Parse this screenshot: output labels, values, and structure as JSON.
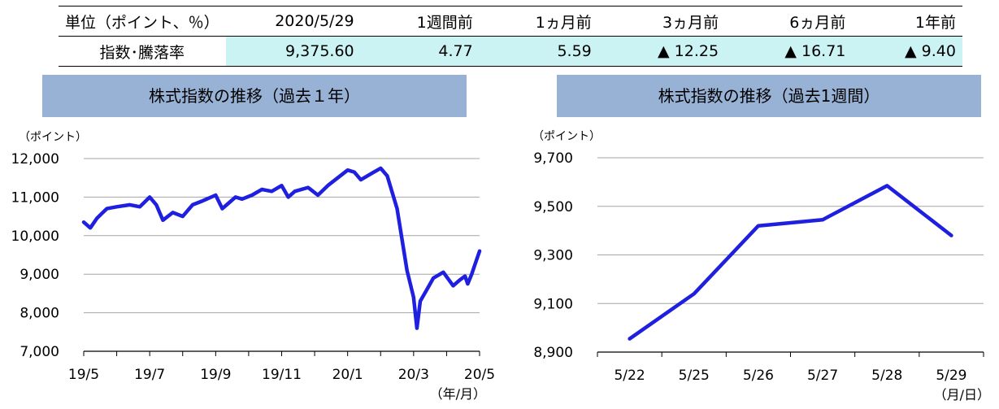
{
  "table": {
    "header": [
      "単位（ポイント、％）",
      "2020/5/29",
      "1週間前",
      "1ヵ月前",
      "3ヵ月前",
      "6ヵ月前",
      "1年前"
    ],
    "row_label": "指数･騰落率",
    "values": [
      "9,375.60",
      "4.77",
      "5.59",
      "▲ 12.25",
      "▲ 16.71",
      "▲ 9.40"
    ]
  },
  "chart_data": [
    {
      "type": "line",
      "title": "株式指数の推移（過去１年）",
      "ylabel": "（ポイント）",
      "xunit": "（年/月）",
      "ylim": [
        7000,
        12000
      ],
      "yticks": [
        "12,000",
        "11,000",
        "10,000",
        "9,000",
        "8,000",
        "7,000"
      ],
      "xticks": [
        "19/5",
        "19/7",
        "19/9",
        "19/11",
        "20/1",
        "20/3",
        "20/5"
      ],
      "color": "#1f1fe0",
      "x": [
        0,
        0.1,
        0.2,
        0.35,
        0.5,
        0.7,
        0.85,
        1.0,
        1.1,
        1.2,
        1.35,
        1.5,
        1.65,
        1.8,
        2.0,
        2.1,
        2.2,
        2.3,
        2.4,
        2.55,
        2.7,
        2.85,
        3.0,
        3.1,
        3.2,
        3.4,
        3.55,
        3.7,
        3.85,
        4.0,
        4.1,
        4.2,
        4.4,
        4.5,
        4.6,
        4.75,
        4.9,
        5.0,
        5.05,
        5.1,
        5.2,
        5.3,
        5.45,
        5.6,
        5.7,
        5.78,
        5.82,
        5.88,
        5.92,
        6.0
      ],
      "y": [
        10350,
        10200,
        10450,
        10700,
        10750,
        10800,
        10750,
        11000,
        10800,
        10400,
        10600,
        10500,
        10800,
        10900,
        11050,
        10700,
        10850,
        11000,
        10950,
        11050,
        11200,
        11150,
        11300,
        11000,
        11150,
        11250,
        11050,
        11300,
        11500,
        11700,
        11650,
        11450,
        11650,
        11750,
        11550,
        10700,
        9100,
        8400,
        7600,
        8300,
        8600,
        8900,
        9050,
        8700,
        8850,
        8950,
        8750,
        9000,
        9200,
        9600
      ]
    },
    {
      "type": "line",
      "title": "株式指数の推移（過去1週間）",
      "ylabel": "（ポイント）",
      "xunit": "（月/日）",
      "ylim": [
        8900,
        9700
      ],
      "yticks": [
        "9,700",
        "9,500",
        "9,300",
        "9,100",
        "8,900"
      ],
      "categories": [
        "5/22",
        "5/25",
        "5/26",
        "5/27",
        "5/28",
        "5/29"
      ],
      "values": [
        8955,
        9140,
        9420,
        9445,
        9585,
        9380
      ],
      "color": "#1f1fe0"
    }
  ]
}
